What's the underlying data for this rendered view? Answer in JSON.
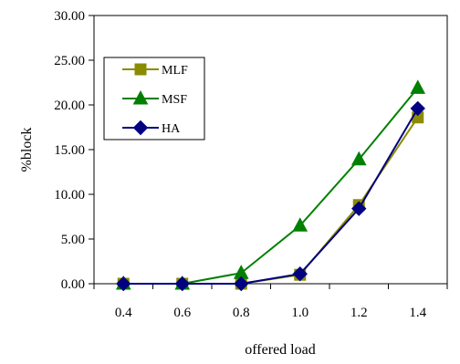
{
  "chart_data": {
    "type": "line",
    "title": "",
    "xlabel": "offered load",
    "ylabel": "%block",
    "categories": [
      "0.4",
      "0.6",
      "0.8",
      "1.0",
      "1.2",
      "1.4"
    ],
    "ylim": [
      0,
      30
    ],
    "yticks": [
      "0.00",
      "5.00",
      "10.00",
      "15.00",
      "20.00",
      "25.00",
      "30.00"
    ],
    "grid": false,
    "legend_position": "upper-left inside plot",
    "series": [
      {
        "name": "MLF",
        "values": [
          0,
          0,
          0,
          1.0,
          8.8,
          18.6
        ],
        "color": "#8B8B00",
        "marker": "square"
      },
      {
        "name": "MSF",
        "values": [
          0,
          0,
          1.2,
          6.5,
          13.9,
          21.9
        ],
        "color": "#008000",
        "marker": "triangle"
      },
      {
        "name": "HA",
        "values": [
          0,
          0,
          0,
          1.1,
          8.4,
          19.6
        ],
        "color": "#000080",
        "marker": "diamond"
      }
    ]
  }
}
